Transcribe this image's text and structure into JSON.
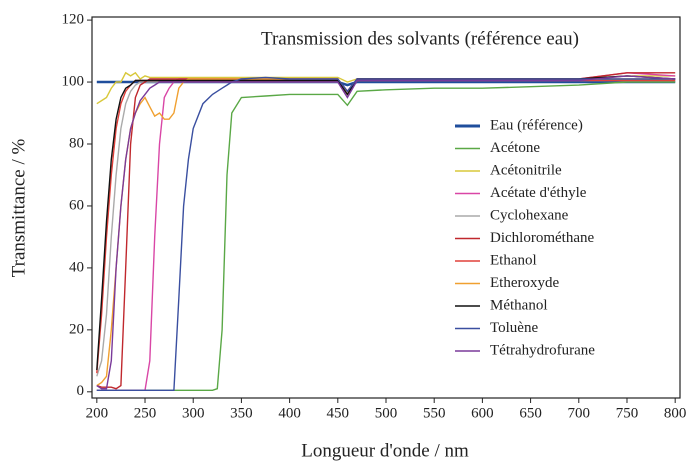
{
  "chart_data": {
    "type": "line",
    "title": "Transmission des solvants (référence eau)",
    "xlabel": "Longueur d'onde / nm",
    "ylabel": "Transmittance / %",
    "x": [
      200,
      205,
      210,
      215,
      220,
      225,
      230,
      235,
      240,
      245,
      250,
      255,
      260,
      265,
      270,
      275,
      280,
      285,
      290,
      295,
      300,
      310,
      320,
      325,
      330,
      335,
      340,
      350,
      375,
      400,
      450,
      460,
      470,
      500,
      550,
      600,
      650,
      700,
      750,
      800
    ],
    "series": [
      {
        "name": "Eau (référence)",
        "color": "#1f4e9c",
        "values": [
          100,
          100,
          100,
          100,
          100,
          100,
          100,
          100,
          100,
          100,
          100,
          100,
          100,
          100,
          100,
          100,
          100,
          100,
          100,
          100,
          100,
          100,
          100,
          100,
          100,
          100,
          100,
          100,
          100,
          100,
          100,
          99,
          100,
          100,
          100,
          100,
          100,
          100,
          100,
          100
        ]
      },
      {
        "name": "Acétone",
        "color": "#5aa846",
        "values": [
          0.5,
          0.5,
          0.5,
          0.5,
          0.5,
          0.5,
          0.5,
          0.5,
          0.5,
          0.5,
          0.5,
          0.5,
          0.5,
          0.5,
          0.5,
          0.5,
          0.5,
          0.5,
          0.5,
          0.5,
          0.5,
          0.5,
          0.5,
          1,
          20,
          70,
          90,
          95,
          95.5,
          96,
          96,
          92.5,
          97,
          97.5,
          98,
          98,
          98.5,
          99,
          100,
          100
        ]
      },
      {
        "name": "Acétonitrile",
        "color": "#d8c83a",
        "values": [
          93,
          94,
          95,
          98,
          100,
          100,
          103,
          102,
          103,
          101,
          102,
          101.5,
          101.5,
          101.5,
          101.5,
          101.5,
          101.5,
          101.5,
          101.5,
          101.5,
          101.5,
          101.5,
          101.5,
          101.5,
          101.5,
          101.5,
          101.5,
          101.5,
          101.5,
          101.5,
          101.5,
          100,
          101,
          101,
          101,
          101,
          101,
          101,
          102,
          102
        ]
      },
      {
        "name": "Acétate d'éthyle",
        "color": "#d946a6",
        "values": [
          0.5,
          0.5,
          0.5,
          0.5,
          0.5,
          0.5,
          0.5,
          0.5,
          0.5,
          0.5,
          0.5,
          10,
          50,
          80,
          95,
          98,
          100,
          101,
          101,
          101,
          101,
          101,
          101,
          101,
          101,
          101,
          101,
          101,
          101,
          101,
          101,
          97,
          101,
          101,
          101,
          101,
          101,
          101,
          103,
          102
        ]
      },
      {
        "name": "Cyclohexane",
        "color": "#aaaaaa",
        "values": [
          5,
          10,
          25,
          50,
          70,
          85,
          93,
          97,
          99,
          100,
          100,
          100,
          100,
          100,
          100,
          100,
          100,
          100,
          100,
          100,
          100,
          100,
          100,
          100,
          100,
          100,
          100,
          100,
          100,
          100,
          100,
          97,
          100.5,
          100.5,
          100.5,
          100.5,
          100.5,
          100.5,
          100.5,
          100.5
        ]
      },
      {
        "name": "Dichlorométhane",
        "color": "#c0282d",
        "values": [
          2,
          1.5,
          1.5,
          1.5,
          1,
          2,
          40,
          80,
          95,
          99,
          100,
          101,
          101,
          101,
          101,
          101,
          101,
          101,
          101,
          101,
          101,
          101,
          101,
          101,
          101,
          101,
          101,
          101,
          101,
          101,
          101,
          97,
          101,
          101,
          101,
          101,
          101,
          101,
          103,
          103
        ]
      },
      {
        "name": "Ethanol",
        "color": "#e0403a",
        "values": [
          6,
          25,
          50,
          70,
          85,
          93,
          97,
          99,
          100.5,
          100.5,
          100.5,
          100.5,
          100.5,
          100.5,
          100.5,
          100.5,
          100.5,
          100.5,
          100.5,
          100.5,
          100.5,
          100.5,
          100.5,
          100.5,
          100.5,
          100.5,
          100.5,
          100.5,
          100.5,
          100.5,
          100.5,
          96,
          100.5,
          100.5,
          100.5,
          100.5,
          100.5,
          100.5,
          100.5,
          100.5
        ]
      },
      {
        "name": "Etheroxyde",
        "color": "#f0a030",
        "values": [
          2,
          3,
          5,
          20,
          40,
          60,
          75,
          85,
          90,
          93,
          95,
          92,
          89,
          90,
          88,
          88,
          90,
          98,
          100,
          101,
          101,
          101,
          101,
          101,
          101,
          101,
          101,
          101,
          101,
          101,
          101,
          96,
          101,
          101,
          101,
          101,
          101,
          101,
          101,
          101
        ]
      },
      {
        "name": "Méthanol",
        "color": "#111111",
        "values": [
          7,
          30,
          55,
          75,
          88,
          95,
          98,
          99,
          100.5,
          100.5,
          100.5,
          100.5,
          100.5,
          100.5,
          100.5,
          100.5,
          100.5,
          100.5,
          100.5,
          100.5,
          100.5,
          100.5,
          100.5,
          100.5,
          100.5,
          100.5,
          100.5,
          100.5,
          100.5,
          100.5,
          100.5,
          96,
          101,
          101,
          101,
          101,
          101,
          101,
          102,
          101
        ]
      },
      {
        "name": "Toluène",
        "color": "#3a4fa0",
        "values": [
          0.5,
          0.5,
          0.5,
          0.5,
          0.5,
          0.5,
          0.5,
          0.5,
          0.5,
          0.5,
          0.5,
          0.5,
          0.5,
          0.5,
          0.5,
          0.5,
          0.5,
          30,
          60,
          75,
          85,
          93,
          96,
          97,
          98,
          99,
          100,
          101,
          101.5,
          101,
          101,
          97,
          101,
          101,
          101,
          101,
          101,
          101,
          101,
          101
        ]
      },
      {
        "name": "Tétrahydrofurane",
        "color": "#7a3a9a",
        "values": [
          2,
          1,
          1,
          10,
          40,
          60,
          75,
          85,
          90,
          94,
          96,
          98,
          99,
          100,
          100,
          100,
          100,
          100,
          100,
          100,
          100,
          100,
          100,
          100,
          100,
          100,
          100,
          100,
          100,
          100,
          100,
          95,
          100.5,
          100.5,
          100.5,
          100.5,
          100.5,
          100.5,
          102,
          101
        ]
      }
    ],
    "xlim": [
      195,
      805
    ],
    "ylim": [
      -2,
      121
    ],
    "xticks": [
      200,
      250,
      300,
      350,
      400,
      450,
      500,
      550,
      600,
      650,
      700,
      750,
      800
    ],
    "yticks": [
      0,
      20,
      40,
      60,
      80,
      100,
      120
    ]
  }
}
